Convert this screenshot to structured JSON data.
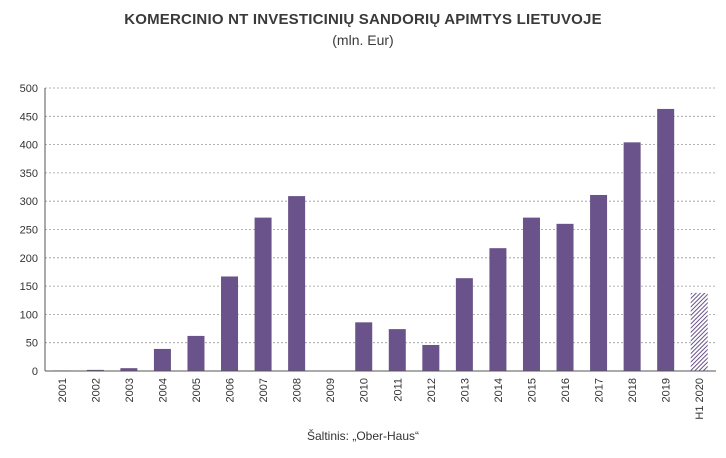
{
  "chart_data": {
    "type": "bar",
    "title": "KOMERCINIO NT INVESTICINIŲ SANDORIŲ APIMTYS LIETUVOJE",
    "subtitle": "(mln. Eur)",
    "source": "Šaltinis: „Ober-Haus“",
    "categories": [
      "2001",
      "2002",
      "2003",
      "2004",
      "2005",
      "2006",
      "2007",
      "2008",
      "2009",
      "2010",
      "2011",
      "2012",
      "2013",
      "2014",
      "2015",
      "2016",
      "2017",
      "2018",
      "2019",
      "H1 2020"
    ],
    "values": [
      1,
      2,
      5,
      39,
      62,
      167,
      271,
      309,
      0,
      86,
      74,
      46,
      164,
      217,
      271,
      260,
      311,
      404,
      463,
      138
    ],
    "ylim": [
      0,
      500
    ],
    "yticks": [
      "0",
      "50",
      "100",
      "150",
      "200",
      "250",
      "300",
      "350",
      "400",
      "450",
      "500"
    ],
    "grid": true,
    "legend": "none",
    "colors": {
      "bar": "#6a528a",
      "partial_year_pattern": "#6a528a",
      "grid": "#9a9a9a",
      "axis": "#555555"
    },
    "partial_categories": [
      "H1 2020"
    ]
  }
}
